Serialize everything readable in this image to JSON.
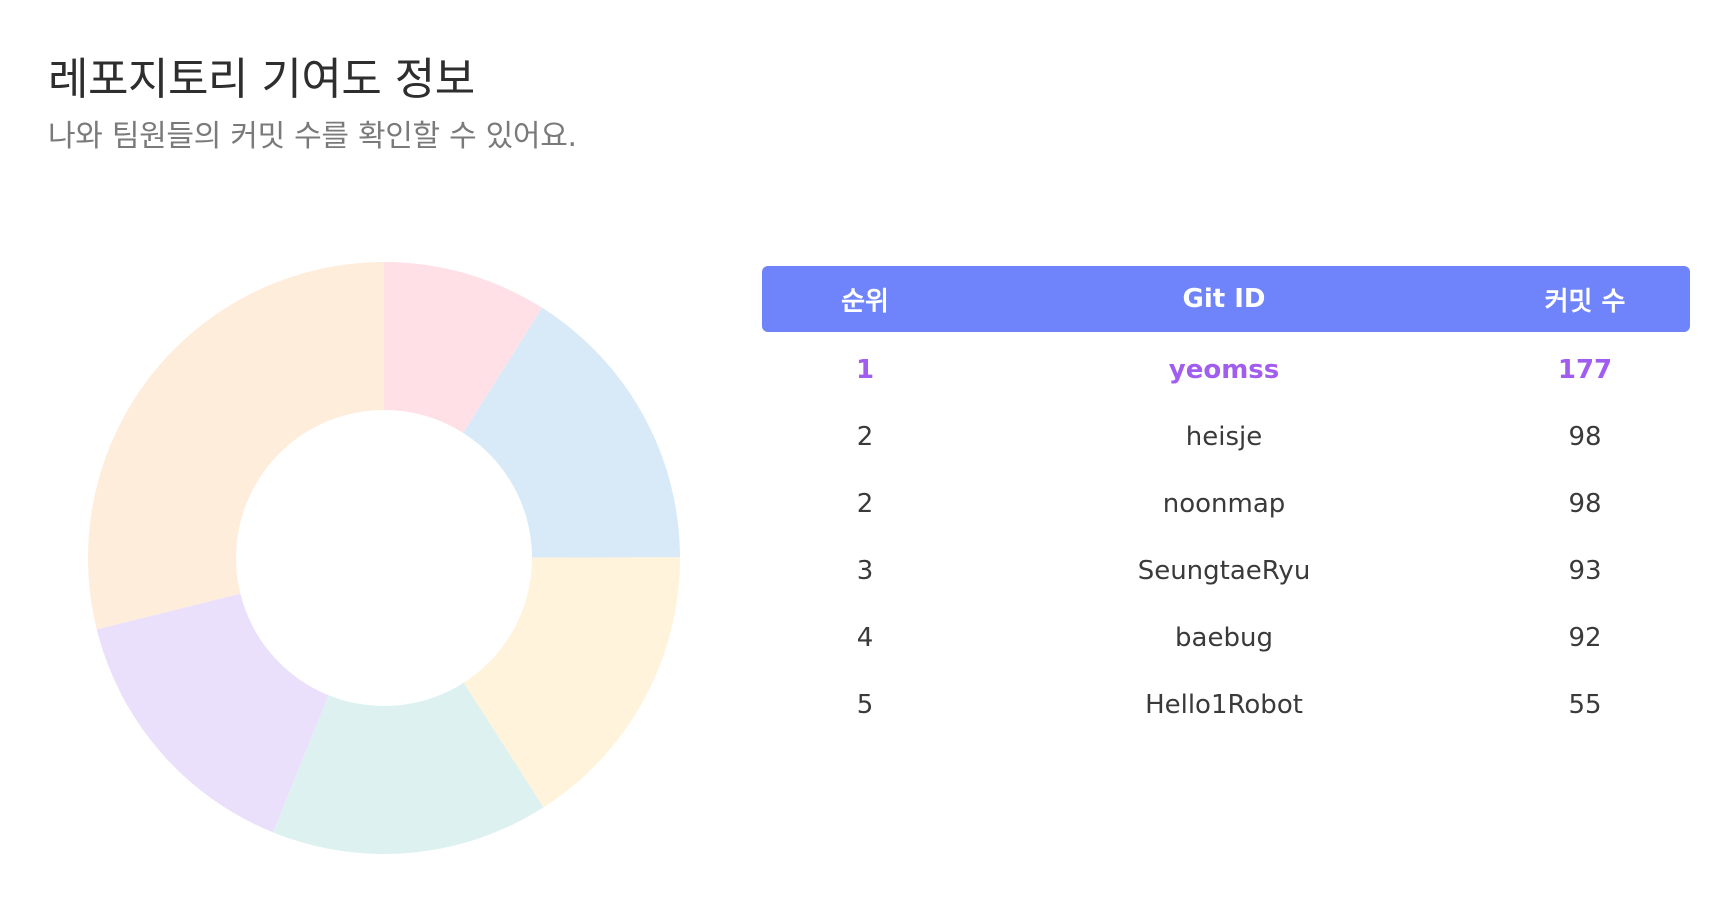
{
  "header": {
    "title": "레포지토리 기여도 정보",
    "subtitle": "나와 팀원들의 커밋 수를 확인할 수 있어요."
  },
  "table": {
    "columns": [
      "순위",
      "Git ID",
      "커밋 수"
    ],
    "rows": [
      {
        "rank": "1",
        "git_id": "yeomss",
        "commits": "177",
        "highlighted": true
      },
      {
        "rank": "2",
        "git_id": "heisje",
        "commits": "98",
        "highlighted": false
      },
      {
        "rank": "2",
        "git_id": "noonmap",
        "commits": "98",
        "highlighted": false
      },
      {
        "rank": "3",
        "git_id": "SeungtaeRyu",
        "commits": "93",
        "highlighted": false
      },
      {
        "rank": "4",
        "git_id": "baebug",
        "commits": "92",
        "highlighted": false
      },
      {
        "rank": "5",
        "git_id": "Hello1Robot",
        "commits": "55",
        "highlighted": false
      }
    ],
    "header_color": "#6f83fa",
    "highlight_color": "#a15cf0"
  },
  "chart_data": {
    "type": "pie",
    "donut": true,
    "series": [
      {
        "value": 55,
        "color": "#ffe0e6"
      },
      {
        "value": 98,
        "color": "#d8eaf8"
      },
      {
        "value": 98,
        "color": "#fff3dc"
      },
      {
        "value": 93,
        "color": "#dcf1f0"
      },
      {
        "value": 92,
        "color": "#ebe0fc"
      },
      {
        "value": 177,
        "color": "#ffeddc"
      }
    ]
  }
}
